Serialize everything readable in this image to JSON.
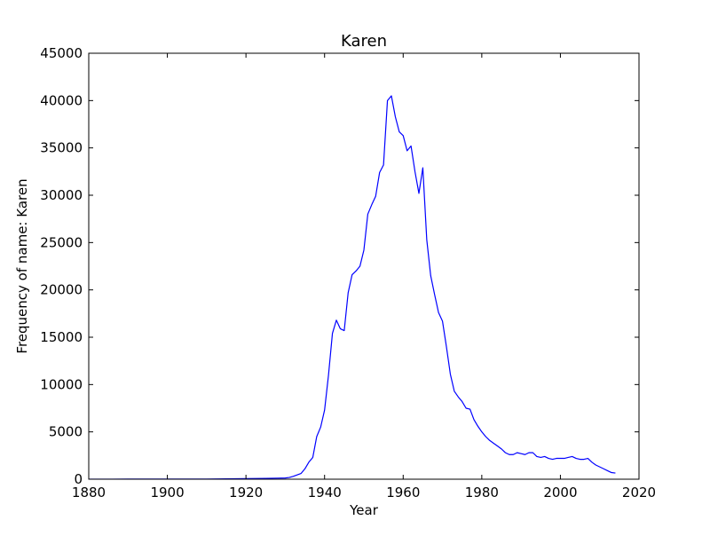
{
  "chart_data": {
    "type": "line",
    "title": "Karen",
    "xlabel": "Year",
    "ylabel": "Frequency of name: Karen",
    "xlim": [
      1880,
      2020
    ],
    "ylim": [
      0,
      45000
    ],
    "xticks": [
      1880,
      1900,
      1920,
      1940,
      1960,
      1980,
      2000,
      2020
    ],
    "yticks": [
      0,
      5000,
      10000,
      15000,
      20000,
      25000,
      30000,
      35000,
      40000,
      45000
    ],
    "grid": false,
    "line_color": "#0000ff",
    "series": [
      {
        "x": [
          1880,
          1890,
          1900,
          1910,
          1915,
          1920,
          1925,
          1928,
          1930,
          1931,
          1932,
          1933,
          1934,
          1935,
          1936,
          1937,
          1938,
          1939,
          1940,
          1941,
          1942,
          1943,
          1944,
          1945,
          1946,
          1947,
          1948,
          1949,
          1950,
          1951,
          1952,
          1953,
          1954,
          1955,
          1956,
          1957,
          1958,
          1959,
          1960,
          1961,
          1962,
          1963,
          1964,
          1965,
          1966,
          1967,
          1968,
          1969,
          1970,
          1971,
          1972,
          1973,
          1974,
          1975,
          1976,
          1977,
          1978,
          1979,
          1980,
          1981,
          1982,
          1983,
          1984,
          1985,
          1986,
          1987,
          1988,
          1989,
          1990,
          1991,
          1992,
          1993,
          1994,
          1995,
          1996,
          1997,
          1998,
          1999,
          2000,
          2001,
          2002,
          2003,
          2004,
          2005,
          2006,
          2007,
          2008,
          2009,
          2010,
          2011,
          2012,
          2013,
          2014
        ],
        "y": [
          5,
          8,
          12,
          20,
          40,
          60,
          90,
          110,
          130,
          180,
          300,
          450,
          600,
          1100,
          1800,
          2300,
          4500,
          5500,
          7300,
          11000,
          15400,
          16800,
          15900,
          15700,
          19700,
          21600,
          22000,
          22500,
          24200,
          28000,
          29000,
          29900,
          32400,
          33200,
          40000,
          40500,
          38300,
          36700,
          36300,
          34700,
          35200,
          32500,
          30200,
          32900,
          25300,
          21500,
          19500,
          17600,
          16700,
          14000,
          11100,
          9300,
          8700,
          8200,
          7500,
          7400,
          6300,
          5600,
          5000,
          4500,
          4100,
          3800,
          3500,
          3200,
          2800,
          2600,
          2600,
          2800,
          2700,
          2600,
          2800,
          2800,
          2400,
          2300,
          2400,
          2200,
          2100,
          2200,
          2200,
          2200,
          2300,
          2400,
          2200,
          2100,
          2100,
          2200,
          1800,
          1500,
          1300,
          1100,
          900,
          700,
          650
        ]
      }
    ]
  }
}
